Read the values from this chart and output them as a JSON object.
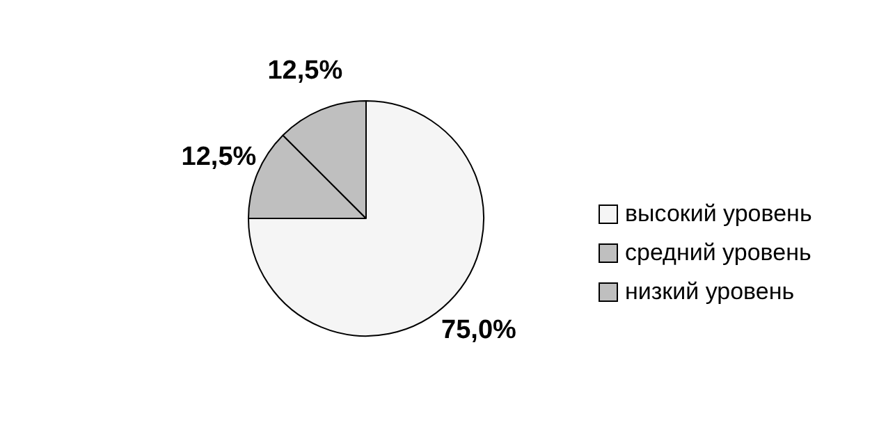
{
  "chart_data": {
    "type": "pie",
    "categories": [
      "высокий уровень",
      "средний уровень",
      "низкий уровень"
    ],
    "values": [
      75,
      12.5,
      12.5
    ],
    "colors": [
      "#f5f5f5",
      "#bfbfbf",
      "#bfbfbf"
    ],
    "value_labels": [
      "75,0%",
      "12,5%",
      "12,5%"
    ],
    "legend": "right"
  }
}
